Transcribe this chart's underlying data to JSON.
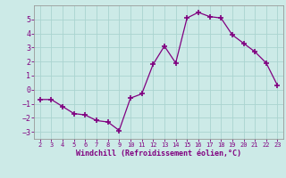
{
  "x": [
    2,
    3,
    4,
    5,
    6,
    7,
    8,
    9,
    10,
    11,
    12,
    13,
    14,
    15,
    16,
    17,
    18,
    19,
    20,
    21,
    22,
    23
  ],
  "y": [
    -0.7,
    -0.7,
    -1.2,
    -1.7,
    -1.8,
    -2.2,
    -2.3,
    -2.9,
    -0.6,
    -0.3,
    1.8,
    3.1,
    1.9,
    5.1,
    5.5,
    5.2,
    5.1,
    3.9,
    3.3,
    2.7,
    1.9,
    0.3
  ],
  "line_color": "#800080",
  "marker": "+",
  "marker_size": 4,
  "marker_lw": 1.2,
  "line_width": 0.9,
  "bg_color": "#cceae7",
  "grid_color": "#aad4d0",
  "xlabel": "Windchill (Refroidissement éolien,°C)",
  "xlabel_color": "#800080",
  "tick_color": "#800080",
  "ylim": [
    -3.5,
    6.0
  ],
  "xlim": [
    1.5,
    23.5
  ],
  "yticks": [
    -3,
    -2,
    -1,
    0,
    1,
    2,
    3,
    4,
    5
  ],
  "xticks": [
    2,
    3,
    4,
    5,
    6,
    7,
    8,
    9,
    10,
    11,
    12,
    13,
    14,
    15,
    16,
    17,
    18,
    19,
    20,
    21,
    22,
    23
  ],
  "spine_color": "#999999"
}
